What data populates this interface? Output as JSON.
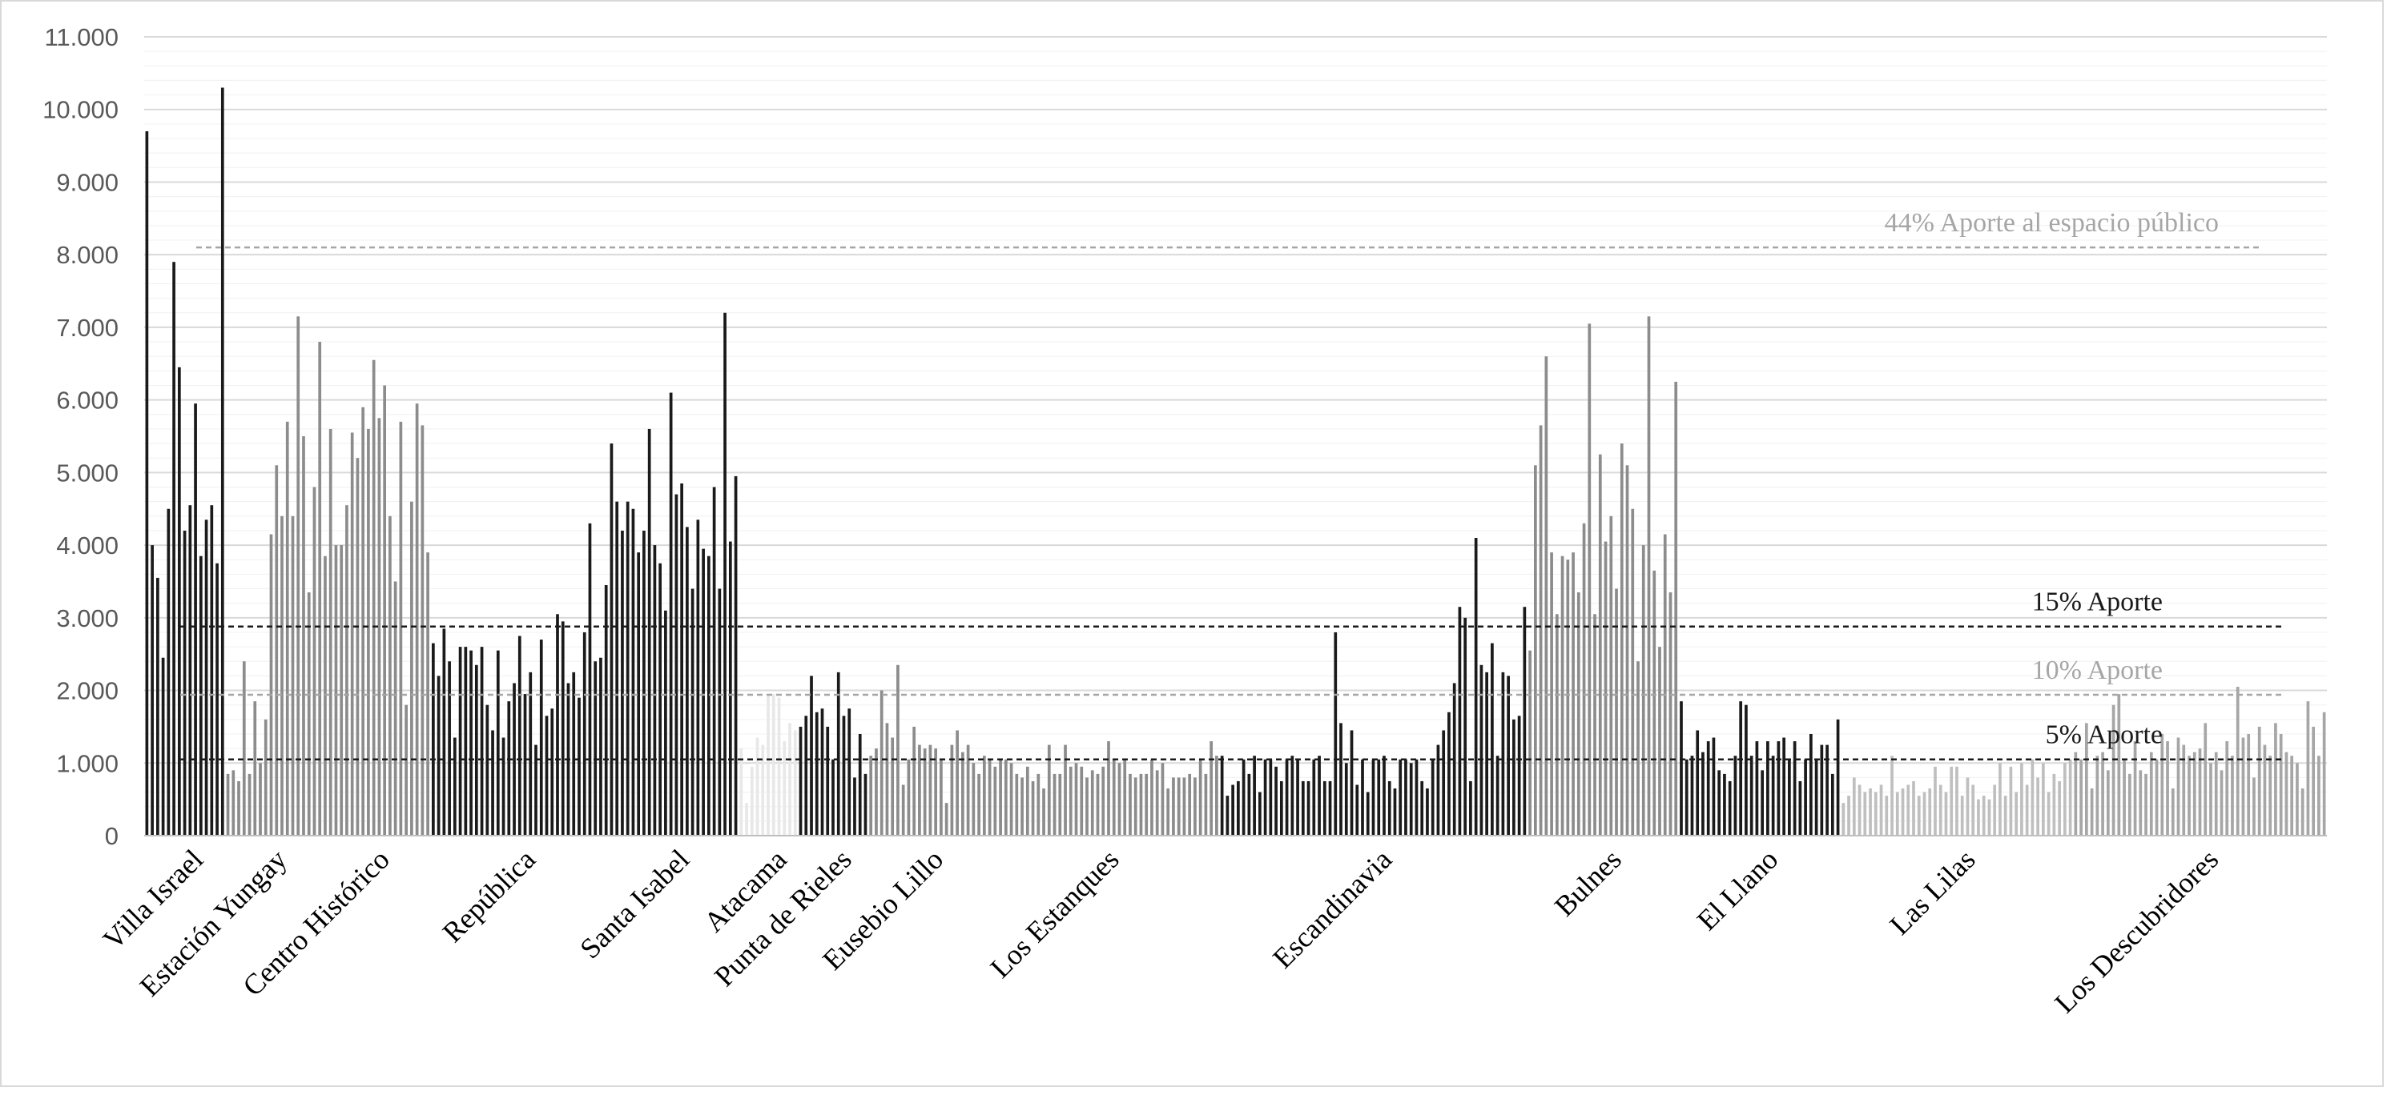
{
  "chart_data": {
    "type": "bar",
    "title": "",
    "xlabel": "",
    "ylabel": "",
    "ylim": [
      0,
      11000
    ],
    "yticks": [
      "0",
      "1.000",
      "2.000",
      "3.000",
      "4.000",
      "5.000",
      "6.000",
      "7.000",
      "8.000",
      "9.000",
      "10.000",
      "11.000"
    ],
    "grid": true,
    "groups": [
      {
        "label": "Villa Israel",
        "color": "#1a1a1a",
        "values": [
          9700,
          4000,
          3550,
          2450,
          4500,
          7900,
          6450,
          4200,
          4550,
          5950,
          3850,
          4350,
          4550,
          3750,
          10300
        ]
      },
      {
        "label": "Estación Yungay",
        "color": "#8c8c8c",
        "values": [
          850,
          900,
          750,
          2400,
          850,
          1850,
          1000,
          1600,
          4150,
          5100,
          4400,
          5700,
          4400,
          7150,
          5500,
          3350
        ]
      },
      {
        "label": "Centro Histórico",
        "color": "#8c8c8c",
        "values": [
          4800,
          6800,
          3850,
          5600,
          4000,
          4000,
          4550,
          5550,
          5200,
          5900,
          5600,
          6550,
          5750,
          6200,
          4400,
          3500,
          5700,
          1800,
          4600,
          5950,
          5650,
          3900
        ]
      },
      {
        "label": "República",
        "color": "#1a1a1a",
        "values": [
          2650,
          2200,
          2850,
          2400,
          1350,
          2600,
          2600,
          2550,
          2350,
          2600,
          1800,
          1450,
          2550,
          1350,
          1850,
          2100,
          2750,
          1950,
          2250,
          1250,
          2700,
          1650,
          1750,
          3050,
          2950,
          2100,
          2250,
          1900,
          2800,
          4300,
          2400,
          2450
        ]
      },
      {
        "label": "Santa Isabel",
        "color": "#1a1a1a",
        "values": [
          3450,
          5400,
          4600,
          4200,
          4600,
          4500,
          3900,
          4200,
          5600,
          4000,
          3750,
          3100,
          6100,
          4700,
          4850,
          4250,
          3400,
          4350,
          3950,
          3850,
          4800,
          3400,
          7200,
          4050,
          4950
        ]
      },
      {
        "label": "Atacama",
        "color": "#e8e8e8",
        "values": [
          1200,
          450,
          950,
          1350,
          1250,
          1950,
          1950,
          1900,
          1300,
          1550,
          1450
        ]
      },
      {
        "label": "Punta de Rieles",
        "color": "#1a1a1a",
        "values": [
          1500,
          1650,
          2200,
          1700,
          1750,
          1500,
          1050,
          2250,
          1650,
          1750,
          800,
          1400,
          850
        ]
      },
      {
        "label": "Eusebio Lillo",
        "color": "#8c8c8c",
        "values": [
          1100,
          1200,
          2000,
          1550,
          1350,
          2350,
          700,
          1050,
          1500,
          1250,
          1200,
          1250,
          1200,
          1050,
          450,
          1250,
          1450,
          1150,
          1250,
          1000,
          850
        ]
      },
      {
        "label": "Los Estanques",
        "color": "#8c8c8c",
        "values": [
          1100,
          1050,
          950,
          1050,
          1050,
          1000,
          850,
          800,
          950,
          750,
          850,
          650,
          1250,
          850,
          850,
          1250,
          950,
          1000,
          950,
          800,
          900,
          850,
          950,
          1300,
          1050,
          1000,
          1050,
          850,
          800,
          850,
          850,
          1050,
          900,
          1000,
          650,
          800,
          800,
          800,
          850,
          800,
          1050,
          850,
          1300,
          1100
        ]
      },
      {
        "label": "Escandinavia",
        "color": "#1a1a1a",
        "values": [
          1100,
          550,
          700,
          750,
          1050,
          850,
          1100,
          600,
          1050,
          1050,
          950,
          750,
          1050,
          1100,
          1050,
          750,
          750,
          1050,
          1100,
          750,
          750,
          2800,
          1550,
          1000,
          1450,
          700,
          1050,
          600,
          1050,
          1050,
          1100,
          750,
          650,
          1050,
          1050,
          1000,
          1050,
          750,
          650,
          1050,
          1250,
          1450,
          1700,
          2100,
          3150,
          3000,
          750,
          4100,
          2350,
          2250,
          2650,
          1100,
          2250,
          2200,
          1600,
          1650,
          3150
        ]
      },
      {
        "label": "Bulnes",
        "color": "#8c8c8c",
        "values": [
          2550,
          5100,
          5650,
          6600,
          3900,
          3050,
          3850,
          3800,
          3900,
          3350,
          4300,
          7050,
          3050,
          5250,
          4050,
          4400,
          3400,
          5400,
          5100,
          4500,
          2400,
          4000,
          7150,
          3650,
          2600,
          4150,
          3350,
          6250
        ]
      },
      {
        "label": "El Llano",
        "color": "#1a1a1a",
        "values": [
          1850,
          1050,
          1100,
          1450,
          1150,
          1300,
          1350,
          900,
          850,
          750,
          1100,
          1850,
          1800,
          1100,
          1300,
          900,
          1300,
          1100,
          1300,
          1350,
          1050,
          1300,
          750,
          1050,
          1400,
          1050,
          1250,
          1250,
          850,
          1600
        ]
      },
      {
        "label": "Las Lilas",
        "color": "#bfbfbf",
        "values": [
          450,
          550,
          800,
          700,
          600,
          650,
          600,
          700,
          550,
          1100,
          600,
          650,
          700,
          750,
          550,
          600,
          650,
          950,
          700,
          600,
          950,
          950,
          550,
          800,
          700,
          500,
          550,
          500,
          700,
          1000,
          550,
          950,
          600,
          1000,
          700,
          1050,
          800,
          1000,
          600,
          850,
          750,
          1000,
          1050
        ]
      },
      {
        "label": "Los Descubridores",
        "color": "#a6a6a6",
        "values": [
          1150,
          1050,
          1550,
          650,
          1100,
          1150,
          900,
          1800,
          1950,
          1050,
          850,
          1300,
          900,
          850,
          1150,
          1050,
          1400,
          1300,
          650,
          1350,
          1250,
          1100,
          1150,
          1200,
          1550,
          1000,
          1150,
          900,
          1300,
          1100,
          2050,
          1350,
          1400,
          800,
          1500,
          1250,
          1100,
          1550,
          1400,
          1150,
          1100,
          1000,
          650,
          1850,
          1500,
          1100,
          1700
        ]
      }
    ],
    "reference_lines": [
      {
        "label": "44% Aporte al espacio público",
        "value": 8100,
        "color": "#a6a6a6"
      },
      {
        "label": "15% Aporte",
        "value": 2880,
        "color": "#1a1a1a"
      },
      {
        "label": "10% Aporte",
        "value": 1940,
        "color": "#a6a6a6"
      },
      {
        "label": "5% Aporte",
        "value": 1050,
        "color": "#1a1a1a"
      }
    ]
  }
}
